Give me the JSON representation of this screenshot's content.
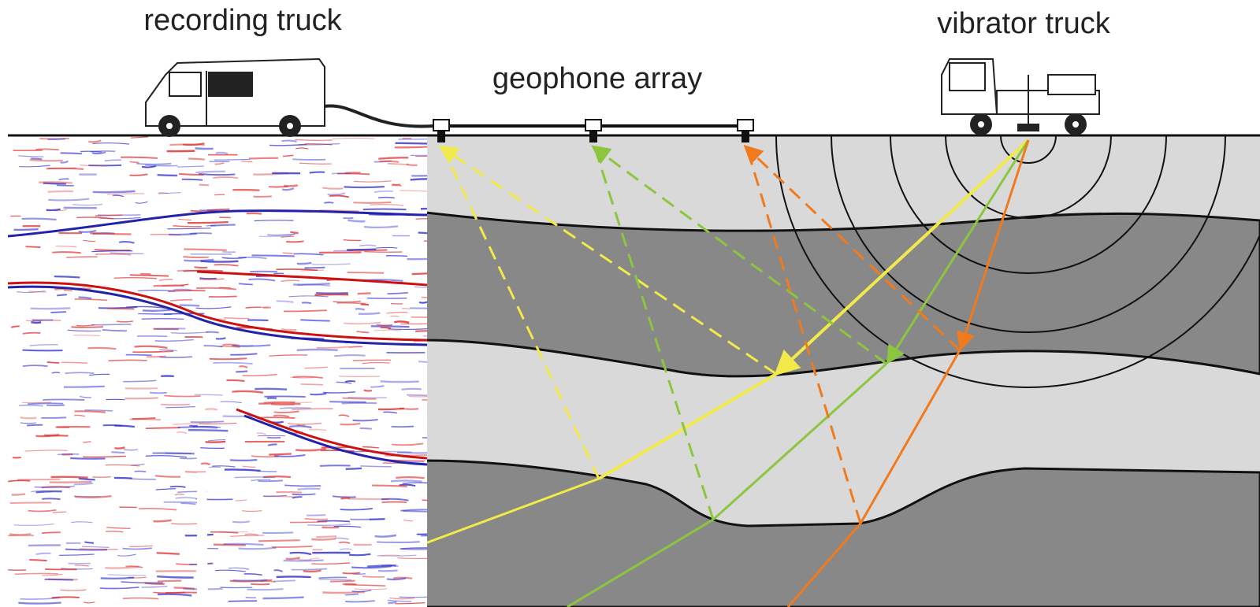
{
  "labels": {
    "recording_truck": "recording truck",
    "geophone_array": "geophone array",
    "vibrator_truck": "vibrator truck"
  }
}
